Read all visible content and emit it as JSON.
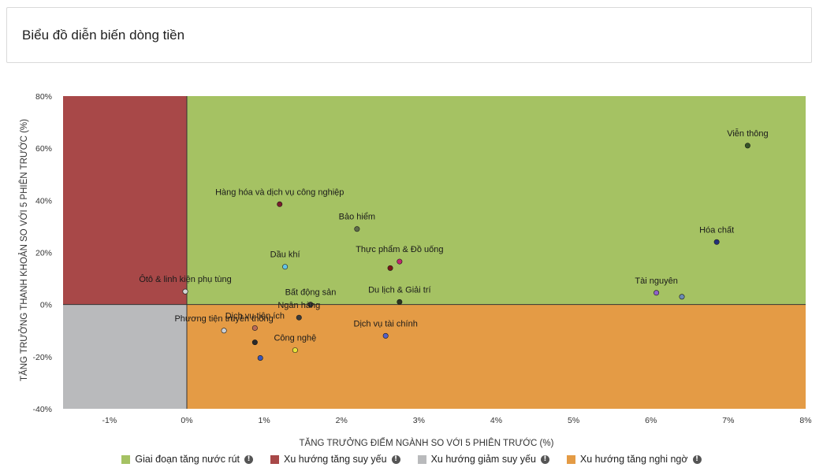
{
  "page": {
    "title": "Biểu đồ diễn biến dòng tiền"
  },
  "chart_data": {
    "type": "scatter",
    "title": "",
    "xlabel": "TĂNG TRƯỞNG ĐIỂM NGÀNH SO VỚI 5 PHIÊN TRƯỚC (%)",
    "ylabel": "TĂNG TRƯỞNG THANH KHOẢN SO VỚI 5 PHIÊN TRƯỚC (%)",
    "xlim": [
      -1.6,
      8.0
    ],
    "ylim": [
      -40,
      80
    ],
    "x_ticks": [
      -1,
      0,
      1,
      2,
      3,
      4,
      5,
      6,
      7,
      8
    ],
    "x_tick_labels": [
      "-1%",
      "0%",
      "1%",
      "2%",
      "3%",
      "4%",
      "5%",
      "6%",
      "7%",
      "8%"
    ],
    "y_ticks": [
      -40,
      -20,
      0,
      20,
      40,
      60,
      80
    ],
    "y_tick_labels": [
      "-40%",
      "-20%",
      "0%",
      "20%",
      "40%",
      "60%",
      "80%"
    ],
    "grid": false,
    "legend_position": "bottom",
    "quadrants": [
      {
        "name": "Giai đoạn tăng nước rút",
        "color": "#a5c263",
        "region": "x>=0, y>=0"
      },
      {
        "name": "Xu hướng tăng suy yếu",
        "color": "#a84848",
        "region": "x<0, y>=0"
      },
      {
        "name": "Xu hướng giảm suy yếu",
        "color": "#b9babc",
        "region": "x<0, y<0"
      },
      {
        "name": "Xu hướng tăng nghi ngờ",
        "color": "#e49b45",
        "region": "x>=0, y<0"
      }
    ],
    "points": [
      {
        "label": "Viễn thông",
        "x": 7.25,
        "y": 61,
        "color": "#355526"
      },
      {
        "label": "Hóa chất",
        "x": 6.85,
        "y": 24,
        "color": "#23307a"
      },
      {
        "label": "Tài nguyên",
        "x": 6.07,
        "y": 4.5,
        "color": "#8e62c7"
      },
      {
        "label": "",
        "x": 6.4,
        "y": 3,
        "color": "#6a8ab4"
      },
      {
        "label": "Hàng hóa và dịch vụ công nghiệp",
        "x": 1.2,
        "y": 38.5,
        "color": "#7a1c2c"
      },
      {
        "label": "Bảo hiểm",
        "x": 2.2,
        "y": 29,
        "color": "#5e6b4a"
      },
      {
        "label": "Dầu khí",
        "x": 1.27,
        "y": 14.5,
        "color": "#63c4e6"
      },
      {
        "label": "Thực phẩm & Đồ uống",
        "x": 2.75,
        "y": 16.5,
        "color": "#c1266e"
      },
      {
        "label": "",
        "x": 2.63,
        "y": 14,
        "color": "#7a1616"
      },
      {
        "label": "Ôtô & linh kiện phụ tùng",
        "x": -0.02,
        "y": 5,
        "color": "#d4d4d4"
      },
      {
        "label": "Bất động sản",
        "x": 1.6,
        "y": 0,
        "color": "#3a3a3a"
      },
      {
        "label": "Du lịch & Giải trí",
        "x": 2.75,
        "y": 1,
        "color": "#2c3320"
      },
      {
        "label": "Ngân hàng",
        "x": 1.45,
        "y": -5,
        "color": "#3a3a3a"
      },
      {
        "label": "Dịch vụ tiện ích",
        "x": 0.88,
        "y": -9,
        "color": "#b96a59"
      },
      {
        "label": "Dịch vụ tài chính",
        "x": 2.57,
        "y": -12,
        "color": "#5560c6"
      },
      {
        "label": "Phương tiện truyền thông",
        "x": 0.48,
        "y": -10,
        "color": "#c9cfd6"
      },
      {
        "label": "",
        "x": 0.88,
        "y": -14.5,
        "color": "#2a2a2a"
      },
      {
        "label": "Công nghệ",
        "x": 1.4,
        "y": -17.5,
        "color": "#e8e23a"
      },
      {
        "label": "",
        "x": 0.95,
        "y": -20.5,
        "color": "#3a56b8"
      }
    ]
  },
  "legend": {
    "items": [
      {
        "label": "Giai đoạn tăng nước rút",
        "color": "#a5c263",
        "icon": "info-icon"
      },
      {
        "label": "Xu hướng tăng suy yếu",
        "color": "#a84848",
        "icon": "info-icon"
      },
      {
        "label": "Xu hướng giảm suy yếu",
        "color": "#b9babc",
        "icon": "info-icon"
      },
      {
        "label": "Xu hướng tăng nghi ngờ",
        "color": "#e49b45",
        "icon": "info-icon"
      }
    ],
    "info_glyph": "!"
  }
}
